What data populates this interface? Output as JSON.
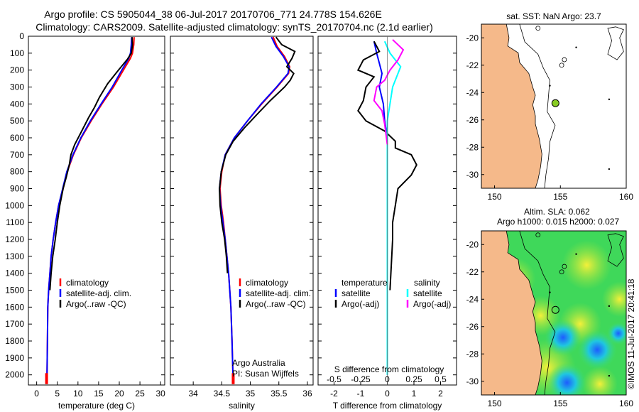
{
  "header": {
    "line1": "Argo profile: CS 5905044_38 06-Jul-2017 20170706_771 24.778S 154.626E",
    "line2": "Climatology: CARS2009. Satellite-adjusted climatology: synTS_20170704.nc (2.1d earlier)"
  },
  "side_label": "©IMOS 11-Jul-2017 20:41:18",
  "colors": {
    "clim": "#ff0000",
    "sat": "#0000ff",
    "argo": "#000000",
    "sal_sat": "#00ffff",
    "sal_argo": "#ff00ff",
    "land": "#f5b98a"
  },
  "chart_data": [
    {
      "type": "line",
      "name": "temperature",
      "xlabel": "temperature (deg C)",
      "xlim": [
        -2,
        31
      ],
      "ylim": [
        2060,
        0
      ],
      "xticks": [
        "0",
        "5",
        "10",
        "15",
        "20",
        "25",
        "30"
      ],
      "xtick_vals": [
        0,
        5,
        10,
        15,
        20,
        25,
        30
      ],
      "yticks": [
        "0",
        "100",
        "200",
        "300",
        "400",
        "500",
        "600",
        "700",
        "800",
        "900",
        "1000",
        "1100",
        "1200",
        "1300",
        "1400",
        "1500",
        "1600",
        "1700",
        "1800",
        "1900",
        "2000"
      ],
      "ytick_vals": [
        0,
        100,
        200,
        300,
        400,
        500,
        600,
        700,
        800,
        900,
        1000,
        1100,
        1200,
        1300,
        1400,
        1500,
        1600,
        1700,
        1800,
        1900,
        2000
      ],
      "legend": [
        "climatology",
        "satellite-adj. clim.",
        "Argo(..raw -QC)"
      ],
      "series": [
        {
          "name": "climatology",
          "color": "#ff0000",
          "x": [
            23.6,
            23.5,
            23.2,
            22.7,
            21.0,
            18.6,
            15.8,
            13.2,
            10.8,
            8.9,
            7.4,
            6.4,
            5.3,
            4.6,
            4.0,
            3.5,
            3.2,
            2.9,
            2.7,
            2.6,
            2.5,
            2.4
          ],
          "y": [
            5,
            50,
            100,
            130,
            200,
            300,
            400,
            500,
            600,
            700,
            800,
            900,
            1000,
            1100,
            1200,
            1300,
            1400,
            1500,
            1600,
            1800,
            2000,
            2050
          ]
        },
        {
          "name": "satellite",
          "color": "#0000ff",
          "x": [
            23.0,
            22.9,
            22.7,
            22.3,
            20.6,
            18.3,
            15.6,
            13.0,
            10.7,
            8.8,
            7.3,
            6.3,
            5.3,
            4.6,
            4.0,
            3.5,
            3.2,
            2.9,
            2.7,
            2.6,
            2.5,
            2.4
          ],
          "y": [
            5,
            50,
            100,
            130,
            200,
            300,
            400,
            500,
            600,
            700,
            800,
            900,
            1000,
            1100,
            1200,
            1300,
            1400,
            1500,
            1600,
            1800,
            2000,
            2050
          ]
        },
        {
          "name": "argo",
          "color": "#000000",
          "x": [
            23.1,
            23.2,
            22.9,
            22.0,
            19.8,
            17.2,
            15.2,
            14.0,
            12.6,
            10.9,
            9.2,
            8.3,
            7.9,
            7.2,
            6.4,
            5.6,
            5.0,
            4.5,
            3.9,
            3.5,
            3.2
          ],
          "y": [
            5,
            50,
            100,
            135,
            200,
            280,
            360,
            420,
            480,
            560,
            640,
            700,
            760,
            830,
            900,
            1000,
            1100,
            1200,
            1300,
            1400,
            1500
          ]
        }
      ]
    },
    {
      "type": "line",
      "name": "salinity",
      "xlabel": "salinity",
      "xlim": [
        33.6,
        36.1
      ],
      "ylim": [
        2060,
        0
      ],
      "xticks": [
        "34",
        "34.5",
        "35",
        "35.5",
        "36"
      ],
      "xtick_vals": [
        34,
        34.5,
        35,
        35.5,
        36
      ],
      "legend": [
        "climatology",
        "satellite-adj. clim.",
        "Argo(..raw -QC)"
      ],
      "notes": [
        "Argo Australia",
        "PI: Susan Wijffels"
      ],
      "series": [
        {
          "name": "climatology",
          "color": "#ff0000",
          "x": [
            35.4,
            35.47,
            35.6,
            35.69,
            35.67,
            35.47,
            35.2,
            34.95,
            34.72,
            34.56,
            34.5,
            34.47,
            34.49,
            34.53,
            34.56,
            34.59,
            34.62,
            34.64,
            34.66,
            34.68,
            34.7
          ],
          "y": [
            5,
            60,
            120,
            180,
            220,
            300,
            400,
            500,
            600,
            700,
            800,
            900,
            1000,
            1100,
            1200,
            1300,
            1400,
            1500,
            1600,
            1800,
            2050
          ]
        },
        {
          "name": "satellite",
          "color": "#0000ff",
          "x": [
            35.37,
            35.45,
            35.58,
            35.68,
            35.66,
            35.46,
            35.19,
            34.95,
            34.72,
            34.56,
            34.49,
            34.46,
            34.48,
            34.52,
            34.56,
            34.59,
            34.62,
            34.64,
            34.66,
            34.68,
            34.7
          ],
          "y": [
            5,
            60,
            120,
            180,
            220,
            300,
            400,
            500,
            600,
            700,
            800,
            900,
            1000,
            1100,
            1200,
            1300,
            1400,
            1500,
            1600,
            1800,
            2050
          ]
        },
        {
          "name": "argo",
          "color": "#000000",
          "x": [
            35.45,
            35.55,
            35.78,
            35.73,
            35.64,
            35.76,
            35.7,
            35.6,
            35.35,
            35.15,
            34.9,
            34.7,
            34.57,
            34.49,
            34.46,
            34.47,
            34.5,
            34.55,
            34.58,
            34.6
          ],
          "y": [
            5,
            50,
            90,
            130,
            180,
            220,
            260,
            300,
            380,
            450,
            540,
            620,
            700,
            800,
            900,
            1000,
            1100,
            1200,
            1300,
            1400
          ]
        }
      ]
    },
    {
      "type": "line",
      "name": "differences",
      "xlabel": "T difference from climatology",
      "top_label": "S difference from climatology",
      "xlim": [
        -2.6,
        2.6
      ],
      "ylim": [
        2060,
        0
      ],
      "xticks": [
        "-2",
        "-1",
        "0",
        "1",
        "2"
      ],
      "xtick_vals": [
        -2,
        -1,
        0,
        1,
        2
      ],
      "top_ticks": [
        "-0.5",
        "-0.25",
        "0",
        "0.25",
        "0.5"
      ],
      "top_tick_vals": [
        -2,
        -1,
        0,
        1,
        2
      ],
      "legend_titles": [
        "temperature",
        "salinity"
      ],
      "legend": [
        "satellite",
        "Argo(-adj)",
        "satellite",
        "Argo(-adj)"
      ],
      "series": [
        {
          "name": "T satellite",
          "color": "#0000ff",
          "x": [
            -0.5,
            -0.4,
            -0.3,
            -0.2,
            -0.3,
            -0.15,
            -0.1,
            0.0,
            0.0,
            0.0,
            0.0,
            0.0,
            0.0
          ],
          "y": [
            30,
            100,
            160,
            220,
            300,
            400,
            500,
            600,
            800,
            1000,
            1400,
            1800,
            2000
          ]
        },
        {
          "name": "T argo",
          "color": "#000000",
          "x": [
            -0.5,
            -0.3,
            -0.9,
            -1.1,
            -0.5,
            -0.8,
            -0.9,
            -1.1,
            -0.8,
            -0.1,
            0.3,
            0.3,
            0.9,
            1.1,
            0.9,
            0.4,
            0.3,
            0.2,
            0.2,
            0.1
          ],
          "y": [
            30,
            90,
            140,
            200,
            240,
            300,
            380,
            440,
            500,
            560,
            620,
            660,
            700,
            760,
            820,
            900,
            1000,
            1100,
            1200,
            1500
          ]
        },
        {
          "name": "S satellite",
          "color": "#00ffff",
          "x": [
            -0.1,
            0.1,
            0.5,
            0.2,
            0.0,
            0.0,
            0.0,
            0.0
          ],
          "y": [
            30,
            100,
            180,
            300,
            500,
            800,
            1200,
            2000
          ]
        },
        {
          "name": "S argo",
          "color": "#ff00ff",
          "x": [
            0.2,
            0.6,
            0.4,
            0.1,
            -0.1,
            -0.4,
            -0.5,
            -0.2,
            -0.1,
            0.0
          ],
          "y": [
            20,
            80,
            140,
            200,
            260,
            300,
            380,
            440,
            520,
            640
          ]
        }
      ]
    },
    {
      "type": "map",
      "name": "sst-map",
      "title": "sat. SST: NaN Argo: 23.7",
      "xlim": [
        149,
        160
      ],
      "ylim": [
        -19,
        -31
      ],
      "xticks": [
        "150",
        "155",
        "160"
      ],
      "xtick_vals": [
        150,
        155,
        160
      ],
      "yticks": [
        "-20",
        "-22",
        "-24",
        "-26",
        "-28",
        "-30"
      ],
      "ytick_vals": [
        -20,
        -22,
        -24,
        -26,
        -28,
        -30
      ],
      "argo_position": [
        154.626,
        -24.778
      ]
    },
    {
      "type": "heatmap",
      "name": "sla-map",
      "title": "Altim. SLA: 0.062",
      "subtitle": "Argo h1000: 0.015 h2000: 0.027",
      "xlim": [
        149,
        160
      ],
      "ylim": [
        -19,
        -31
      ],
      "xticks": [
        "150",
        "155",
        "160"
      ],
      "xtick_vals": [
        150,
        155,
        160
      ],
      "yticks": [
        "-20",
        "-22",
        "-24",
        "-26",
        "-28",
        "-30"
      ],
      "ytick_vals": [
        -20,
        -22,
        -24,
        -26,
        -28,
        -30
      ],
      "argo_position": [
        154.626,
        -24.778
      ]
    }
  ]
}
